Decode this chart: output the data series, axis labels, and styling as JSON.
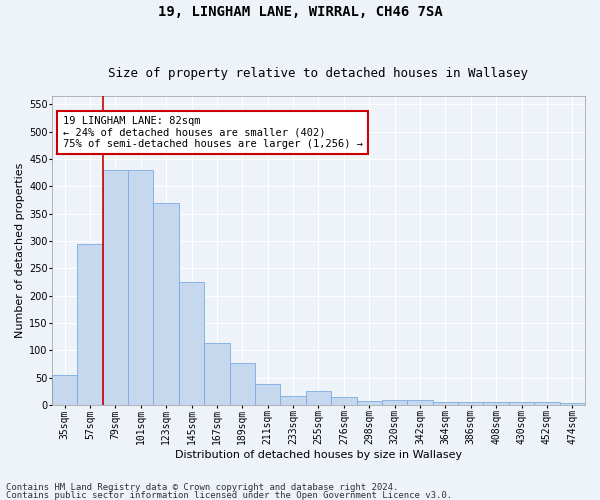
{
  "title": "19, LINGHAM LANE, WIRRAL, CH46 7SA",
  "subtitle": "Size of property relative to detached houses in Wallasey",
  "xlabel": "Distribution of detached houses by size in Wallasey",
  "ylabel": "Number of detached properties",
  "categories": [
    "35sqm",
    "57sqm",
    "79sqm",
    "101sqm",
    "123sqm",
    "145sqm",
    "167sqm",
    "189sqm",
    "211sqm",
    "233sqm",
    "255sqm",
    "276sqm",
    "298sqm",
    "320sqm",
    "342sqm",
    "364sqm",
    "386sqm",
    "408sqm",
    "430sqm",
    "452sqm",
    "474sqm"
  ],
  "values": [
    55,
    295,
    430,
    430,
    370,
    225,
    113,
    76,
    38,
    16,
    26,
    14,
    8,
    9,
    9,
    5,
    6,
    5,
    5,
    5,
    3
  ],
  "bar_color": "#c5d8ed",
  "bar_edge_color": "#7aabe0",
  "red_line_index": 2,
  "ylim": [
    0,
    565
  ],
  "yticks": [
    0,
    50,
    100,
    150,
    200,
    250,
    300,
    350,
    400,
    450,
    500,
    550
  ],
  "annotation_text": "19 LINGHAM LANE: 82sqm\n← 24% of detached houses are smaller (402)\n75% of semi-detached houses are larger (1,256) →",
  "annotation_box_color": "#ffffff",
  "annotation_box_edge": "#cc0000",
  "footer1": "Contains HM Land Registry data © Crown copyright and database right 2024.",
  "footer2": "Contains public sector information licensed under the Open Government Licence v3.0.",
  "bg_color": "#eef3fa",
  "grid_color": "#ffffff",
  "title_fontsize": 10,
  "subtitle_fontsize": 9,
  "axis_label_fontsize": 8,
  "tick_fontsize": 7,
  "annotation_fontsize": 7.5,
  "footer_fontsize": 6.5
}
